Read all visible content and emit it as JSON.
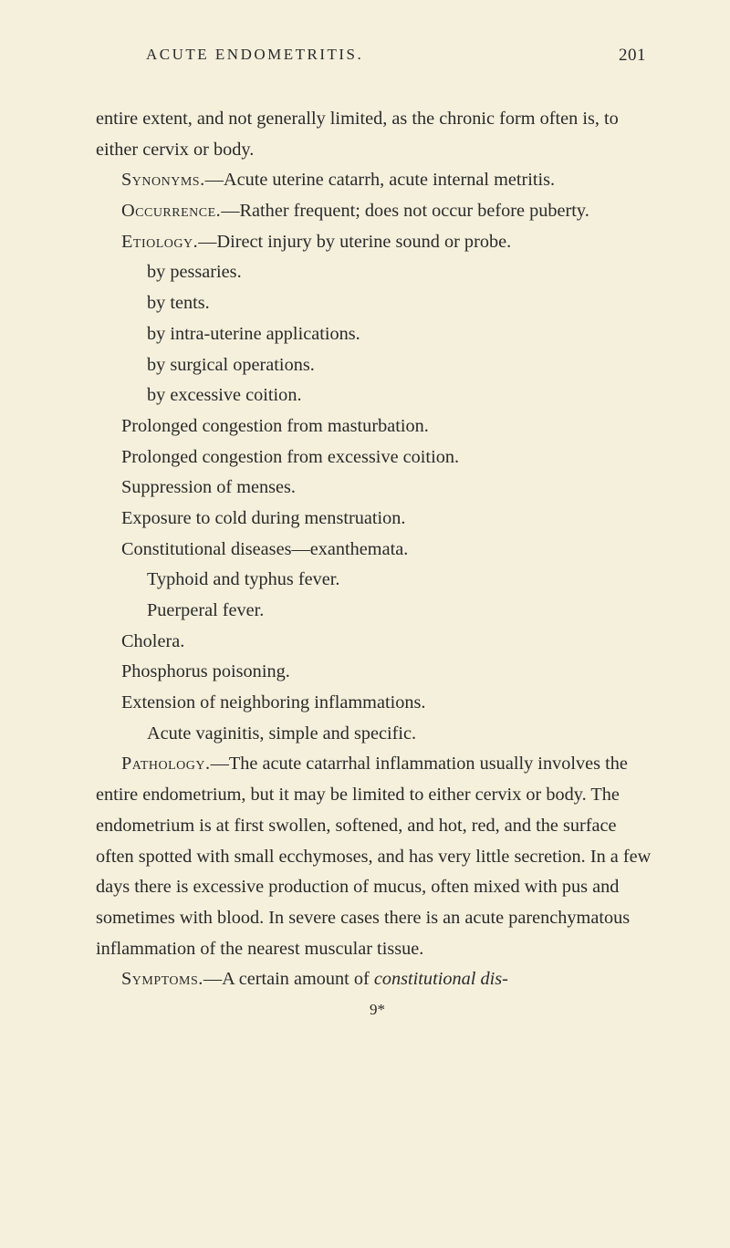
{
  "header": {
    "title": "ACUTE ENDOMETRITIS.",
    "page_number": "201"
  },
  "body": {
    "p1": "entire extent, and not generally limited, as the chronic form often is, to either cervix or body.",
    "synonyms_label": "Synonyms.",
    "synonyms_text": "—Acute uterine catarrh, acute internal metritis.",
    "occurrence_label": "Occurrence.",
    "occurrence_text": "—Rather frequent; does not occur before puberty.",
    "etiology_label": "Etiology.",
    "etiology_text": "—Direct injury by uterine sound or probe.",
    "etio_sub1": "by pessaries.",
    "etio_sub2": "by tents.",
    "etio_sub3": "by intra-uterine applications.",
    "etio_sub4": "by surgical operations.",
    "etio_sub5": "by excessive coition.",
    "etio_item2": "Prolonged congestion from masturbation.",
    "etio_item3": "Prolonged congestion from excessive coition.",
    "etio_item4": "Suppression of menses.",
    "etio_item5": "Exposure to cold during menstruation.",
    "etio_item6": "Constitutional diseases—exanthemata.",
    "etio_sub6": "Typhoid and typhus fever.",
    "etio_sub7": "Puerperal fever.",
    "etio_item7": "Cholera.",
    "etio_item8": "Phosphorus poisoning.",
    "etio_item9": "Extension of neighboring inflammations.",
    "etio_sub8": "Acute vaginitis, simple and specific.",
    "pathology_label": "Pathology.",
    "pathology_text": "—The acute catarrhal inflammation usually involves the entire endometrium, but it may be limited to either cervix or body. The endometrium is at first swollen, softened, and hot, red, and the surface often spotted with small ecchymoses, and has very little secretion. In a few days there is excessive production of mucus, often mixed with pus and sometimes with blood. In severe cases there is an acute parenchymatous inflammation of the nearest muscular tissue.",
    "symptoms_label": "Symptoms.",
    "symptoms_text_pre": "—A certain amount of ",
    "symptoms_italic": "constitutional dis-",
    "footer_mark": "9*"
  },
  "colors": {
    "background": "#f5f0dc",
    "text": "#2a2a2a"
  },
  "typography": {
    "body_fontsize": 20.3,
    "header_fontsize": 17,
    "line_height": 1.66
  }
}
